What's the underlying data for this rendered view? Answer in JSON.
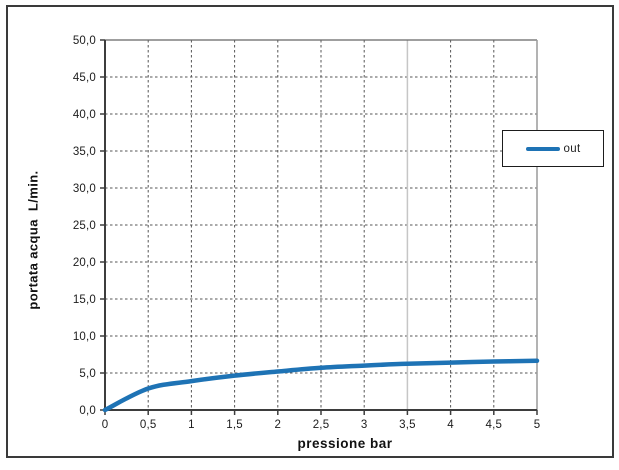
{
  "window": {
    "background": "#ffffff",
    "frame_border_color": "#3a3a3a"
  },
  "chart_data": {
    "type": "line",
    "title": "",
    "xlabel": "pressione bar",
    "ylabel": "portata acqua  L/min.",
    "xlim": [
      0,
      5
    ],
    "ylim": [
      0,
      50
    ],
    "grid": "dashed",
    "grid_color": "#555555",
    "axis_color": "#3d3d3d",
    "top_border_color": "#666666",
    "right_border_color": "#9a9a9a",
    "light_gridline_x": 3.5,
    "light_gridline_color": "#c6c6c6",
    "x_ticks": {
      "values": [
        0,
        0.5,
        1,
        1.5,
        2,
        2.5,
        3,
        3.5,
        4,
        4.5,
        5
      ],
      "labels": [
        "0",
        "0,5",
        "1",
        "1,5",
        "2",
        "2,5",
        "3",
        "3,5",
        "4",
        "4,5",
        "5"
      ]
    },
    "y_ticks": {
      "values": [
        0,
        5,
        10,
        15,
        20,
        25,
        30,
        35,
        40,
        45,
        50
      ],
      "labels": [
        "0,0",
        "5,0",
        "10,0",
        "15,0",
        "20,0",
        "25,0",
        "30,0",
        "35,0",
        "40,0",
        "45,0",
        "50,0"
      ]
    },
    "legend": {
      "position": "right-inside",
      "border": true
    },
    "series": [
      {
        "name": "out",
        "color": "#1e73b5",
        "x": [
          0,
          0.5,
          1,
          1.5,
          2,
          2.5,
          3,
          3.5,
          4,
          4.5,
          5
        ],
        "y": [
          0,
          2.9,
          3.9,
          4.65,
          5.2,
          5.7,
          6.0,
          6.25,
          6.4,
          6.55,
          6.65
        ]
      }
    ]
  }
}
